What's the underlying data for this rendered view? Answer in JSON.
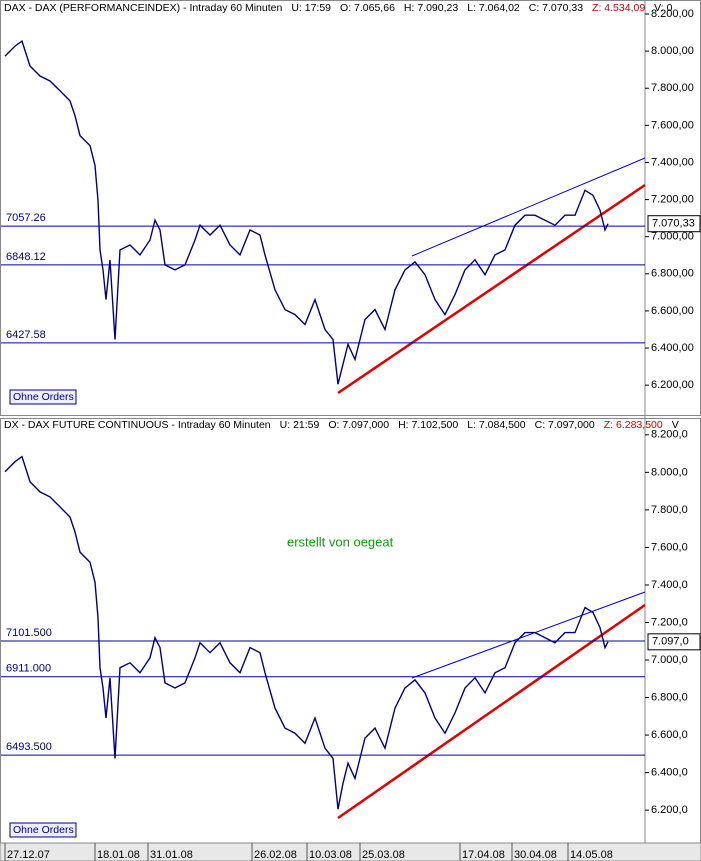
{
  "chart_data": [
    {
      "type": "line",
      "header": [
        "DAX - DAX (PERFORMANCEINDEX) - Intraday 60 Minuten",
        "U: 17:59",
        "O: 7.065,66",
        "H: 7.090,23",
        "L: 7.064,02",
        "C: 7.070,33",
        "Z: 4.534,09",
        "V: 0"
      ],
      "x": [
        0,
        5,
        8.5,
        12.5,
        17.5,
        22.5,
        27.5,
        32.5,
        35,
        37.5,
        42.5,
        45,
        46.5,
        47.5,
        49,
        50.5,
        52.5,
        55,
        57.5,
        62.5,
        67.5,
        72.5,
        75,
        77.5,
        80,
        85,
        90,
        95,
        97.5,
        102.5,
        107.5,
        112.5,
        117.5,
        122.5,
        127.5,
        130,
        135,
        140,
        145,
        150,
        155,
        160,
        164,
        166.5,
        169,
        171.5,
        175,
        180,
        185,
        190,
        195,
        200,
        205,
        210,
        215,
        220,
        225,
        230,
        235,
        240,
        245,
        250,
        255,
        260,
        265,
        270,
        275,
        280,
        285,
        290,
        294,
        297.5,
        300,
        301.5
      ],
      "series": [
        {
          "color": "#000080",
          "values": [
            7973,
            8027,
            8054,
            7920,
            7866,
            7839,
            7786,
            7732,
            7652,
            7545,
            7491,
            7384,
            7196,
            6929,
            6821,
            6661,
            6875,
            6446,
            6929,
            6955,
            6902,
            6982,
            7089,
            7036,
            6848,
            6821,
            6848,
            6982,
            7062,
            7009,
            7062,
            6955,
            6902,
            7036,
            7009,
            6902,
            6714,
            6607,
            6580,
            6527,
            6661,
            6500,
            6446,
            6205,
            6313,
            6420,
            6339,
            6554,
            6607,
            6500,
            6714,
            6821,
            6864,
            6795,
            6661,
            6580,
            6688,
            6821,
            6875,
            6795,
            6902,
            6929,
            7062,
            7116,
            7116,
            7089,
            7062,
            7116,
            7116,
            7250,
            7223,
            7143,
            7036,
            7070
          ]
        }
      ],
      "xlim": [
        0,
        320
      ],
      "ylim": [
        6050,
        8200
      ],
      "yticks": [
        {
          "value": 6200,
          "label": "6.200,00"
        },
        {
          "value": 6400,
          "label": "6.400,00"
        },
        {
          "value": 6600,
          "label": "6.600,00"
        },
        {
          "value": 6800,
          "label": "6.800,00"
        },
        {
          "value": 7000,
          "label": "7.000,00"
        },
        {
          "value": 7200,
          "label": "7.200,00"
        },
        {
          "value": 7400,
          "label": "7.400,00"
        },
        {
          "value": 7600,
          "label": "7.600,00"
        },
        {
          "value": 7800,
          "label": "7.800,00"
        },
        {
          "value": 8000,
          "label": "8.000,00"
        },
        {
          "value": 8200,
          "label": "8.200,00"
        }
      ],
      "hlines": [
        7057.26,
        6848.12,
        6427.58
      ],
      "last_label": "7.070,33",
      "button": "Ohne Orders"
    },
    {
      "type": "line",
      "header": [
        "DX - DAX FUTURE CONTINUOUS - Intraday 60 Minuten",
        "U: 21:59",
        "O: 7.097,000",
        "H: 7.102,500",
        "L: 7.084,500",
        "C: 7.097,000",
        "Z: 6.283,500",
        "V"
      ],
      "x": [
        0,
        5,
        8.5,
        12.5,
        17.5,
        22.5,
        27.5,
        32.5,
        35,
        37.5,
        42.5,
        45,
        46.5,
        47.5,
        49,
        50.5,
        52.5,
        55,
        57.5,
        62.5,
        67.5,
        72.5,
        75,
        77.5,
        80,
        85,
        90,
        95,
        97.5,
        102.5,
        107.5,
        112.5,
        117.5,
        122.5,
        127.5,
        130,
        135,
        140,
        145,
        150,
        155,
        160,
        164,
        166.5,
        169,
        171.5,
        175,
        180,
        185,
        190,
        195,
        200,
        205,
        210,
        215,
        220,
        225,
        230,
        235,
        240,
        245,
        250,
        255,
        260,
        265,
        270,
        275,
        280,
        285,
        290,
        294,
        297.5,
        300,
        301.5
      ],
      "series": [
        {
          "color": "#000080",
          "values": [
            8003,
            8057,
            8084,
            7950,
            7896,
            7869,
            7816,
            7762,
            7682,
            7575,
            7521,
            7414,
            7226,
            6959,
            6851,
            6691,
            6905,
            6476,
            6959,
            6985,
            6932,
            7012,
            7119,
            7066,
            6878,
            6851,
            6878,
            7012,
            7092,
            7039,
            7092,
            6985,
            6932,
            7066,
            7039,
            6932,
            6744,
            6637,
            6610,
            6557,
            6691,
            6530,
            6476,
            6205,
            6343,
            6450,
            6369,
            6584,
            6637,
            6530,
            6744,
            6851,
            6894,
            6825,
            6691,
            6610,
            6718,
            6851,
            6905,
            6825,
            6932,
            6959,
            7092,
            7146,
            7146,
            7119,
            7092,
            7146,
            7146,
            7280,
            7253,
            7173,
            7066,
            7097
          ]
        }
      ],
      "xlim": [
        0,
        320
      ],
      "ylim": [
        6025,
        8215
      ],
      "yticks": [
        {
          "value": 6200,
          "label": "6.200,0"
        },
        {
          "value": 6400,
          "label": "6.400,0"
        },
        {
          "value": 6600,
          "label": "6.600,0"
        },
        {
          "value": 6800,
          "label": "6.800,0"
        },
        {
          "value": 7000,
          "label": "7.000,0"
        },
        {
          "value": 7200,
          "label": "7.200,0"
        },
        {
          "value": 7400,
          "label": "7.400,0"
        },
        {
          "value": 7600,
          "label": "7.600,0"
        },
        {
          "value": 7800,
          "label": "7.800,0"
        },
        {
          "value": 8000,
          "label": "8.000,0"
        },
        {
          "value": 8200,
          "label": "8.200,0"
        }
      ],
      "xticks": [
        {
          "value": 0,
          "label": "27.12.07"
        },
        {
          "value": 45,
          "label": "18.01.08"
        },
        {
          "value": 71.5,
          "label": "31.01.08"
        },
        {
          "value": 123.5,
          "label": "26.02.08"
        },
        {
          "value": 151,
          "label": "10.03.08"
        },
        {
          "value": 177.5,
          "label": "25.03.08"
        },
        {
          "value": 227.5,
          "label": "17.04.08"
        },
        {
          "value": 253.5,
          "label": "30.04.08"
        },
        {
          "value": 281.5,
          "label": "14.05.08"
        }
      ],
      "hlines": [
        {
          "value": 7101.5,
          "label": "7101.500"
        },
        {
          "value": 6911,
          "label": "6911.000"
        },
        {
          "value": 6493.5,
          "label": "6493.500"
        }
      ],
      "last_label": "7.097,0",
      "button": "Ohne Orders",
      "annotation": "erstellt von oegeat"
    }
  ]
}
